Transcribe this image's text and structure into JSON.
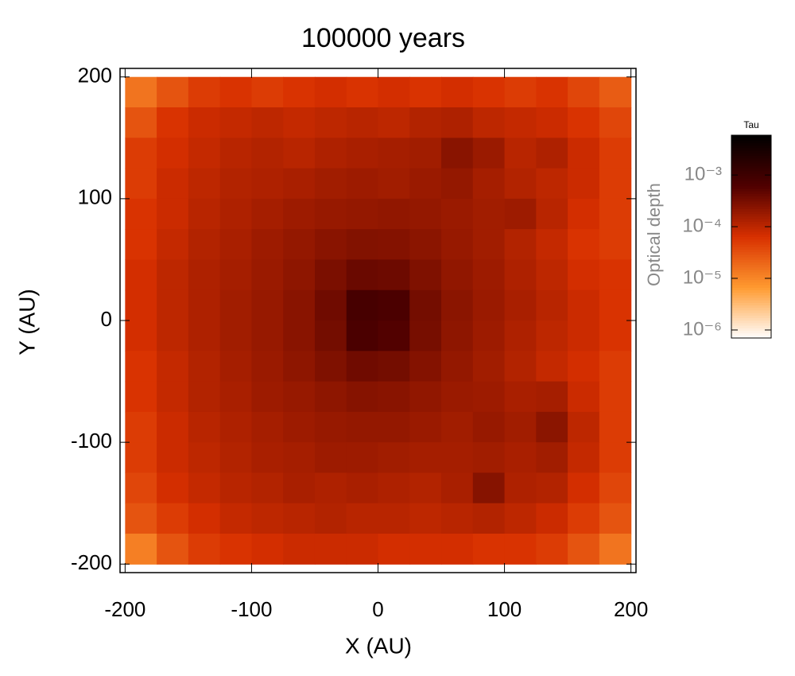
{
  "chart_data": {
    "type": "heatmap",
    "title": "100000 years",
    "xlabel": "X (AU)",
    "ylabel": "Y (AU)",
    "xlim": [
      -204,
      204
    ],
    "ylim": [
      -207,
      207
    ],
    "xticks": [
      -200,
      -100,
      0,
      100,
      200
    ],
    "yticks": [
      -200,
      -100,
      0,
      100,
      200
    ],
    "z": [
      [
        1.5e-05,
        3e-05,
        5e-05,
        6e-05,
        5e-05,
        6e-05,
        7e-05,
        6e-05,
        7e-05,
        6e-05,
        7e-05,
        6e-05,
        5e-05,
        6e-05,
        4e-05,
        2.5e-05
      ],
      [
        3e-05,
        6e-05,
        8e-05,
        9e-05,
        0.0001,
        9e-05,
        0.0001,
        0.00011,
        0.0001,
        0.00012,
        0.00013,
        0.0001,
        9e-05,
        8e-05,
        6e-05,
        4e-05
      ],
      [
        5e-05,
        7e-05,
        9e-05,
        0.00011,
        0.00012,
        0.00011,
        0.00013,
        0.00014,
        0.00015,
        0.00016,
        0.00024,
        0.00018,
        0.00011,
        0.00013,
        8e-05,
        5e-05
      ],
      [
        5e-05,
        8e-05,
        0.0001,
        0.00012,
        0.00013,
        0.00014,
        0.00016,
        0.00017,
        0.00016,
        0.00018,
        0.0002,
        0.00015,
        0.00012,
        0.0001,
        8e-05,
        5e-05
      ],
      [
        6e-05,
        8e-05,
        0.00011,
        0.00013,
        0.00015,
        0.00017,
        0.00019,
        0.0002,
        0.00021,
        0.0002,
        0.00018,
        0.00016,
        0.00017,
        0.00011,
        7e-05,
        5e-05
      ],
      [
        6e-05,
        9e-05,
        0.00012,
        0.00014,
        0.00017,
        0.0002,
        0.00024,
        0.00027,
        0.00026,
        0.00023,
        0.00019,
        0.00016,
        0.00012,
        9e-05,
        6e-05,
        5e-05
      ],
      [
        7e-05,
        0.0001,
        0.00013,
        0.00015,
        0.00018,
        0.00022,
        0.0003,
        0.0004,
        0.00038,
        0.00028,
        0.00021,
        0.00017,
        0.00013,
        0.0001,
        7e-05,
        6e-05
      ],
      [
        7e-05,
        0.0001,
        0.00013,
        0.00016,
        0.00019,
        0.00024,
        0.00036,
        0.0008,
        0.0007,
        0.00034,
        0.00023,
        0.00018,
        0.00014,
        0.00011,
        8e-05,
        6e-05
      ],
      [
        7e-05,
        0.0001,
        0.00013,
        0.00016,
        0.00019,
        0.00024,
        0.00034,
        0.0007,
        0.0006,
        0.00032,
        0.00022,
        0.00017,
        0.00013,
        0.0001,
        8e-05,
        6e-05
      ],
      [
        6e-05,
        9e-05,
        0.00012,
        0.00015,
        0.00018,
        0.00022,
        0.00028,
        0.00036,
        0.00034,
        0.00026,
        0.0002,
        0.00016,
        0.00012,
        9e-05,
        7e-05,
        5e-05
      ],
      [
        6e-05,
        9e-05,
        0.00012,
        0.00014,
        0.00017,
        0.00019,
        0.00022,
        0.00025,
        0.00024,
        0.00021,
        0.00018,
        0.00017,
        0.00014,
        0.00015,
        8e-05,
        5e-05
      ],
      [
        5e-05,
        8e-05,
        0.00011,
        0.00013,
        0.00015,
        0.00017,
        0.00019,
        0.0002,
        0.0002,
        0.00018,
        0.00016,
        0.00019,
        0.00016,
        0.00023,
        0.0001,
        5e-05
      ],
      [
        5e-05,
        8e-05,
        0.0001,
        0.00012,
        0.00014,
        0.00015,
        0.00017,
        0.00017,
        0.00016,
        0.00015,
        0.00015,
        0.00016,
        0.00014,
        0.00016,
        9e-05,
        5e-05
      ],
      [
        4e-05,
        7e-05,
        9e-05,
        0.00011,
        0.00012,
        0.00014,
        0.00013,
        0.00014,
        0.00013,
        0.00012,
        0.00014,
        0.00025,
        0.00013,
        0.00012,
        7e-05,
        4e-05
      ],
      [
        3e-05,
        5e-05,
        7e-05,
        9e-05,
        0.0001,
        0.00011,
        0.00012,
        0.00011,
        0.00011,
        0.0001,
        0.00011,
        0.00012,
        0.0001,
        8e-05,
        5e-05,
        3e-05
      ],
      [
        1.2e-05,
        3e-05,
        5e-05,
        6e-05,
        7e-05,
        8e-05,
        8e-05,
        8e-05,
        7e-05,
        7e-05,
        7e-05,
        6e-05,
        6e-05,
        5e-05,
        3e-05,
        1.5e-05
      ]
    ],
    "colorbar": {
      "title": "Tau",
      "label": "Optical depth",
      "log": true,
      "zlim": [
        7e-07,
        0.0059
      ],
      "ticks": [
        {
          "value": 1e-06,
          "label": "10⁻⁶"
        },
        {
          "value": 1e-05,
          "label": "10⁻⁵"
        },
        {
          "value": 0.0001,
          "label": "10⁻⁴"
        },
        {
          "value": 0.001,
          "label": "10⁻³"
        }
      ],
      "colormap": [
        "#ffffff",
        "#ff9a30",
        "#d83000",
        "#500000",
        "#000000"
      ]
    }
  }
}
